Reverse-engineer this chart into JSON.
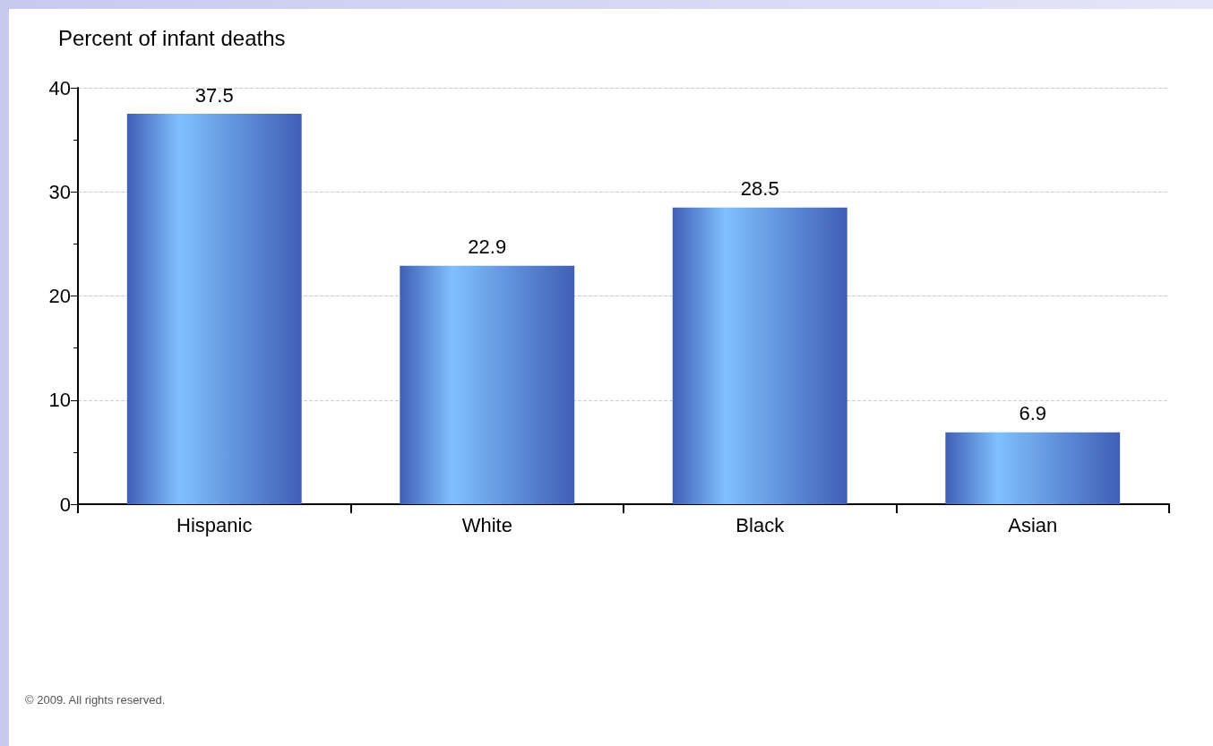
{
  "chart_data": {
    "type": "bar",
    "ylabel": "Percent of infant deaths",
    "categories": [
      "Hispanic",
      "White",
      "Black",
      "Asian"
    ],
    "values": [
      37.5,
      22.9,
      28.5,
      6.9
    ],
    "color": "#3f5fb5",
    "ylim": [
      0,
      40
    ],
    "yticks": [
      0,
      10,
      20,
      30,
      40
    ],
    "grid": "y",
    "data_labels": true,
    "annotations": [
      "© 2009. All rights reserved."
    ]
  }
}
